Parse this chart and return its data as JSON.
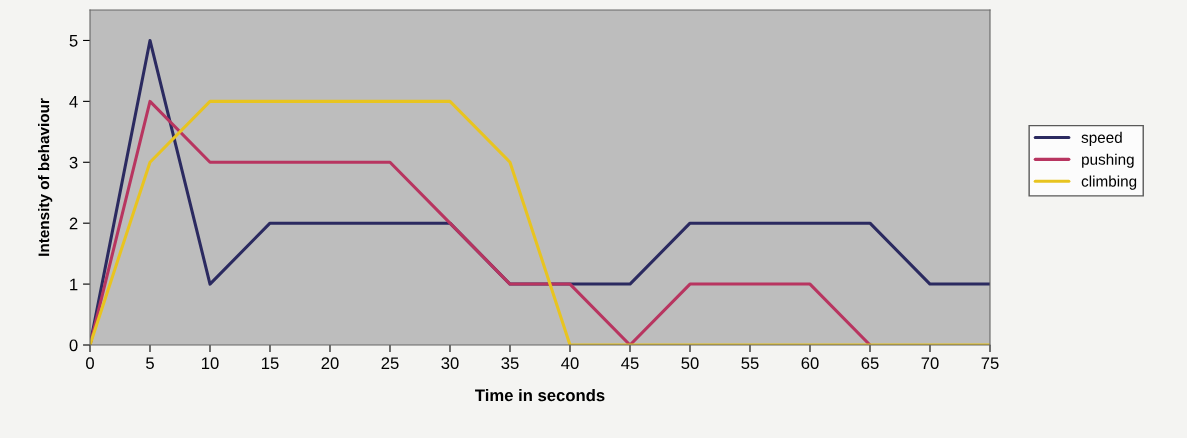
{
  "chart_data": {
    "type": "line",
    "xlabel": "Time in seconds",
    "ylabel": "Intensity of behaviour",
    "x": [
      0,
      5,
      10,
      15,
      20,
      25,
      30,
      35,
      40,
      45,
      50,
      55,
      60,
      65,
      70,
      75
    ],
    "series": [
      {
        "name": "speed",
        "color": "#2b2a60",
        "values": [
          0,
          5,
          1,
          2,
          2,
          2,
          2,
          1,
          1,
          1,
          2,
          2,
          2,
          2,
          1,
          1
        ]
      },
      {
        "name": "pushing",
        "color": "#b83560",
        "values": [
          0,
          4,
          3,
          3,
          3,
          3,
          2,
          1,
          1,
          0,
          1,
          1,
          1,
          0,
          null,
          null
        ]
      },
      {
        "name": "climbing",
        "color": "#e8c420",
        "values": [
          0,
          3,
          4,
          4,
          4,
          4,
          4,
          3,
          0,
          0,
          0,
          0,
          0,
          0,
          0,
          0
        ]
      }
    ],
    "xlim": [
      0,
      75
    ],
    "xticks": [
      0,
      5,
      10,
      15,
      20,
      25,
      30,
      35,
      40,
      45,
      50,
      55,
      60,
      65,
      70,
      75
    ],
    "ylim": [
      0,
      5.5
    ],
    "yticks": [
      0,
      1,
      2,
      3,
      4,
      5
    ],
    "grid": false,
    "legend": "right",
    "marker": "none",
    "line_style": "solid"
  }
}
